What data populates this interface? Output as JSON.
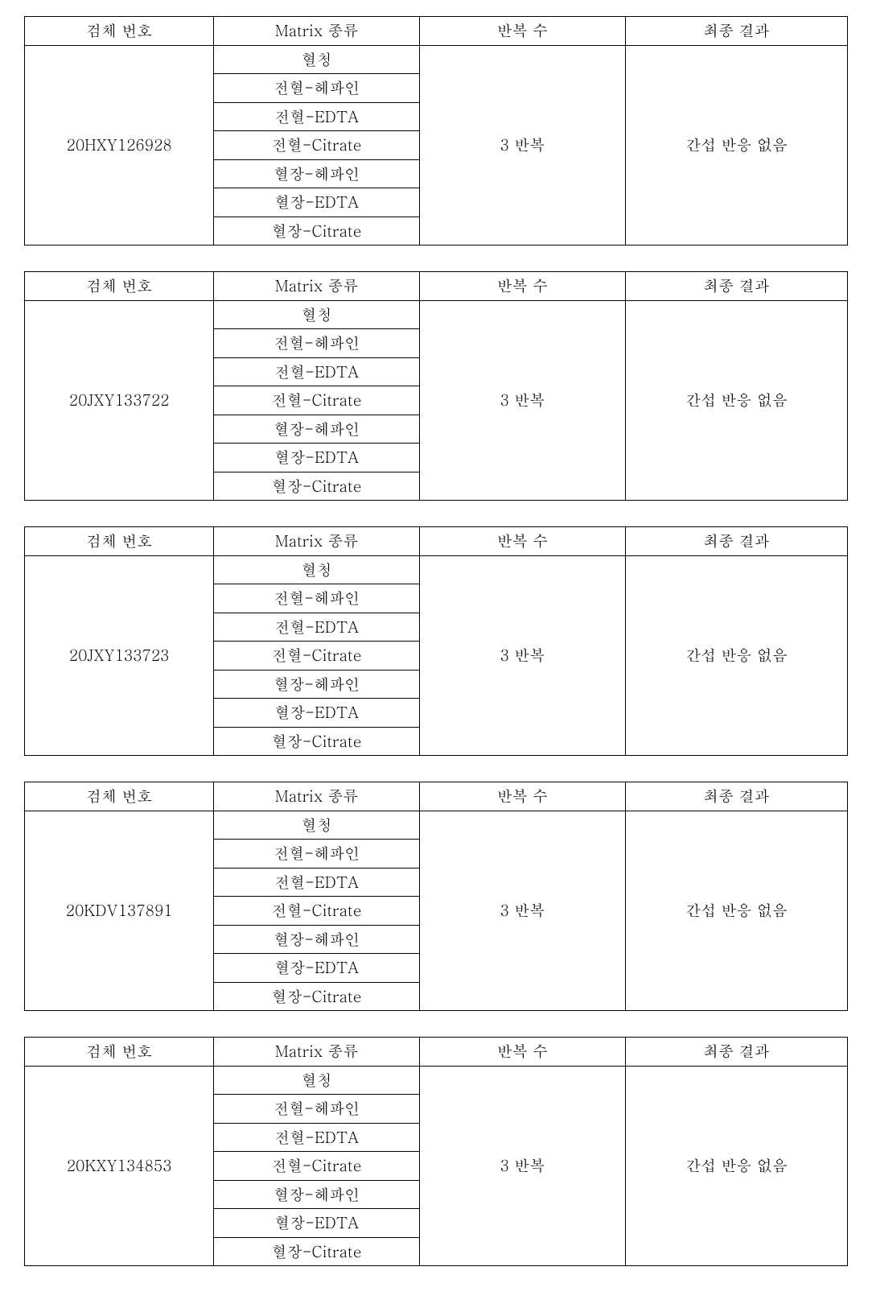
{
  "headers": {
    "sample_number": "검체 번호",
    "matrix_type": "Matrix 종류",
    "repeat_count": "반복 수",
    "final_result": "최종 결과"
  },
  "matrix_types": [
    "혈청",
    "전혈-헤파인",
    "전혈-EDTA",
    "전혈-Citrate",
    "혈장-헤파인",
    "혈장-EDTA",
    "혈장-Citrate"
  ],
  "tables": [
    {
      "sample_id": "20HXY126928",
      "repeat": "3 반복",
      "result": "간섭 반응 없음"
    },
    {
      "sample_id": "20JXY133722",
      "repeat": "3 반복",
      "result": "간섭 반응 없음"
    },
    {
      "sample_id": "20JXY133723",
      "repeat": "3 반복",
      "result": "간섭 반응 없음"
    },
    {
      "sample_id": "20KDV137891",
      "repeat": "3 반복",
      "result": "간섭 반응 없음"
    },
    {
      "sample_id": "20KXY134853",
      "repeat": "3 반복",
      "result": "간섭 반응 없음"
    }
  ],
  "styling": {
    "border_color": "#000000",
    "background_color": "#ffffff",
    "text_color": "#000000",
    "font_size": 19,
    "cell_padding": "3px 4px",
    "table_spacing": 32,
    "column_widths": [
      "23%",
      "25%",
      "25%",
      "27%"
    ]
  }
}
